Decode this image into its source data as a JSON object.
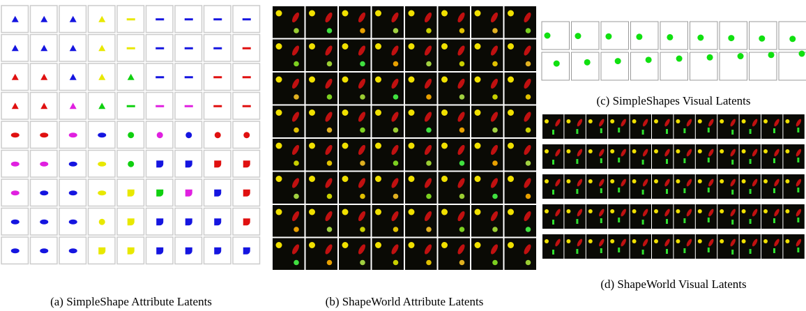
{
  "panels": [
    {
      "caption": "(a) SimpleShape Attribute Latents"
    },
    {
      "caption": "(b) ShapeWorld Attribute Latents"
    },
    {
      "caption": "(c) SimpleShapes Visual Latents"
    },
    {
      "caption": "(d) ShapeWorld Visual Latents"
    }
  ]
}
